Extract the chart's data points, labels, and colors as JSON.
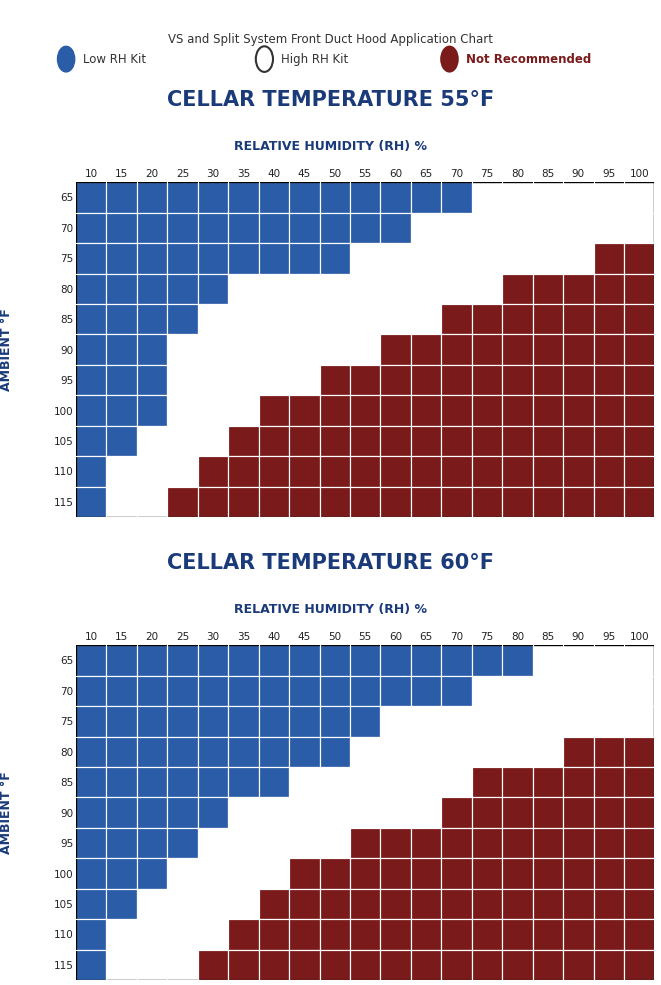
{
  "title_main": "VS and Split System Front Duct Hood Application Chart",
  "rh_values": [
    10,
    15,
    20,
    25,
    30,
    35,
    40,
    45,
    50,
    55,
    60,
    65,
    70,
    75,
    80,
    85,
    90,
    95,
    100
  ],
  "ambient_values": [
    65,
    70,
    75,
    80,
    85,
    90,
    95,
    100,
    105,
    110,
    115
  ],
  "cellar_temp_label": "CELLAR TEMPERATURE",
  "rh_label": "RELATIVE HUMIDITY (RH) %",
  "ambient_label": "AMBIENT °F",
  "blue": "#2a5ca8",
  "red": "#7a1a1a",
  "white": "#ffffff",
  "title_color": "#1a3a7a",
  "label_color": "#1a3a7a",
  "tick_color": "#222222",
  "tables": [
    {
      "cellar_temp": "55°F",
      "grid": [
        [
          "B",
          "B",
          "B",
          "B",
          "B",
          "B",
          "B",
          "B",
          "B",
          "B",
          "B",
          "B",
          "B",
          "W",
          "W",
          "W",
          "W",
          "W",
          "W"
        ],
        [
          "B",
          "B",
          "B",
          "B",
          "B",
          "B",
          "B",
          "B",
          "B",
          "B",
          "B",
          "W",
          "W",
          "W",
          "W",
          "W",
          "W",
          "W",
          "W"
        ],
        [
          "B",
          "B",
          "B",
          "B",
          "B",
          "B",
          "B",
          "B",
          "B",
          "W",
          "W",
          "W",
          "W",
          "W",
          "W",
          "W",
          "W",
          "R",
          "R"
        ],
        [
          "B",
          "B",
          "B",
          "B",
          "B",
          "W",
          "W",
          "W",
          "W",
          "W",
          "W",
          "W",
          "W",
          "W",
          "R",
          "R",
          "R",
          "R",
          "R"
        ],
        [
          "B",
          "B",
          "B",
          "B",
          "W",
          "W",
          "W",
          "W",
          "W",
          "W",
          "W",
          "W",
          "R",
          "R",
          "R",
          "R",
          "R",
          "R",
          "R"
        ],
        [
          "B",
          "B",
          "B",
          "W",
          "W",
          "W",
          "W",
          "W",
          "W",
          "W",
          "R",
          "R",
          "R",
          "R",
          "R",
          "R",
          "R",
          "R",
          "R"
        ],
        [
          "B",
          "B",
          "B",
          "W",
          "W",
          "W",
          "W",
          "W",
          "R",
          "R",
          "R",
          "R",
          "R",
          "R",
          "R",
          "R",
          "R",
          "R",
          "R"
        ],
        [
          "B",
          "B",
          "B",
          "W",
          "W",
          "W",
          "R",
          "R",
          "R",
          "R",
          "R",
          "R",
          "R",
          "R",
          "R",
          "R",
          "R",
          "R",
          "R"
        ],
        [
          "B",
          "B",
          "W",
          "W",
          "W",
          "R",
          "R",
          "R",
          "R",
          "R",
          "R",
          "R",
          "R",
          "R",
          "R",
          "R",
          "R",
          "R",
          "R"
        ],
        [
          "B",
          "W",
          "W",
          "W",
          "R",
          "R",
          "R",
          "R",
          "R",
          "R",
          "R",
          "R",
          "R",
          "R",
          "R",
          "R",
          "R",
          "R",
          "R"
        ],
        [
          "B",
          "W",
          "W",
          "R",
          "R",
          "R",
          "R",
          "R",
          "R",
          "R",
          "R",
          "R",
          "R",
          "R",
          "R",
          "R",
          "R",
          "R",
          "R"
        ]
      ]
    },
    {
      "cellar_temp": "60°F",
      "grid": [
        [
          "B",
          "B",
          "B",
          "B",
          "B",
          "B",
          "B",
          "B",
          "B",
          "B",
          "B",
          "B",
          "B",
          "B",
          "B",
          "W",
          "W",
          "W",
          "W"
        ],
        [
          "B",
          "B",
          "B",
          "B",
          "B",
          "B",
          "B",
          "B",
          "B",
          "B",
          "B",
          "B",
          "B",
          "W",
          "W",
          "W",
          "W",
          "W",
          "W"
        ],
        [
          "B",
          "B",
          "B",
          "B",
          "B",
          "B",
          "B",
          "B",
          "B",
          "B",
          "W",
          "W",
          "W",
          "W",
          "W",
          "W",
          "W",
          "W",
          "W"
        ],
        [
          "B",
          "B",
          "B",
          "B",
          "B",
          "B",
          "B",
          "B",
          "B",
          "W",
          "W",
          "W",
          "W",
          "W",
          "W",
          "W",
          "R",
          "R",
          "R"
        ],
        [
          "B",
          "B",
          "B",
          "B",
          "B",
          "B",
          "B",
          "W",
          "W",
          "W",
          "W",
          "W",
          "W",
          "R",
          "R",
          "R",
          "R",
          "R",
          "R"
        ],
        [
          "B",
          "B",
          "B",
          "B",
          "B",
          "W",
          "W",
          "W",
          "W",
          "W",
          "W",
          "W",
          "R",
          "R",
          "R",
          "R",
          "R",
          "R",
          "R"
        ],
        [
          "B",
          "B",
          "B",
          "B",
          "W",
          "W",
          "W",
          "W",
          "W",
          "R",
          "R",
          "R",
          "R",
          "R",
          "R",
          "R",
          "R",
          "R",
          "R"
        ],
        [
          "B",
          "B",
          "B",
          "W",
          "W",
          "W",
          "W",
          "R",
          "R",
          "R",
          "R",
          "R",
          "R",
          "R",
          "R",
          "R",
          "R",
          "R",
          "R"
        ],
        [
          "B",
          "B",
          "W",
          "W",
          "W",
          "W",
          "R",
          "R",
          "R",
          "R",
          "R",
          "R",
          "R",
          "R",
          "R",
          "R",
          "R",
          "R",
          "R"
        ],
        [
          "B",
          "W",
          "W",
          "W",
          "W",
          "R",
          "R",
          "R",
          "R",
          "R",
          "R",
          "R",
          "R",
          "R",
          "R",
          "R",
          "R",
          "R",
          "R"
        ],
        [
          "B",
          "W",
          "W",
          "W",
          "R",
          "R",
          "R",
          "R",
          "R",
          "R",
          "R",
          "R",
          "R",
          "R",
          "R",
          "R",
          "R",
          "R",
          "R"
        ]
      ]
    }
  ]
}
